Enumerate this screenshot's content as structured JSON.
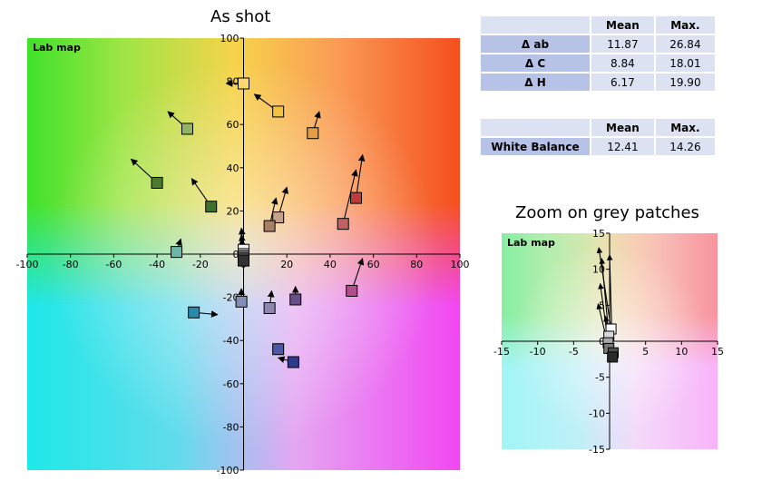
{
  "titles": {
    "main": "As shot",
    "zoom": "Zoom on grey patches"
  },
  "stats_table_1": {
    "headers": [
      "",
      "Mean",
      "Max."
    ],
    "rows": [
      {
        "label": "Δ ab",
        "mean": "11.87",
        "max": "26.84"
      },
      {
        "label": "Δ C",
        "mean": "8.84",
        "max": "18.01"
      },
      {
        "label": "Δ H",
        "mean": "6.17",
        "max": "19.90"
      }
    ]
  },
  "stats_table_2": {
    "headers": [
      "",
      "Mean",
      "Max."
    ],
    "rows": [
      {
        "label": "White Balance",
        "mean": "12.41",
        "max": "14.26"
      }
    ]
  },
  "colors": {
    "table_header_bg": "#dde2f3",
    "table_label_bg": "#b7c2e7",
    "arrow": "#000000"
  },
  "chart_data": [
    {
      "type": "scatter",
      "title": "As shot",
      "map_label": "Lab map",
      "xlim": [
        -100,
        100
      ],
      "ylim": [
        -100,
        100
      ],
      "xticks": [
        -100,
        -80,
        -60,
        -40,
        -20,
        0,
        20,
        40,
        60,
        80,
        100
      ],
      "yticks": [
        -100,
        -80,
        -60,
        -40,
        -20,
        0,
        20,
        40,
        60,
        80,
        100
      ],
      "background": "a*b* color gradient",
      "marker": "square with arrow",
      "patches": [
        {
          "a": 0,
          "b": 79,
          "ta": -8,
          "tb": 79,
          "fill": "#fcd96a"
        },
        {
          "a": 16,
          "b": 66,
          "ta": 5,
          "tb": 74,
          "fill": "#f4c241"
        },
        {
          "a": 32,
          "b": 56,
          "ta": 35,
          "tb": 66,
          "fill": "#e69e44"
        },
        {
          "a": -26,
          "b": 58,
          "ta": -35,
          "tb": 66,
          "fill": "#8fb563"
        },
        {
          "a": -40,
          "b": 33,
          "ta": -52,
          "tb": 44,
          "fill": "#4e7a2f"
        },
        {
          "a": -15,
          "b": 22,
          "ta": -24,
          "tb": 35,
          "fill": "#3f6f2d"
        },
        {
          "a": 52,
          "b": 26,
          "ta": 55,
          "tb": 46,
          "fill": "#bd3b3b"
        },
        {
          "a": 46,
          "b": 14,
          "ta": 52,
          "tb": 39,
          "fill": "#c26161"
        },
        {
          "a": 16,
          "b": 17,
          "ta": 20,
          "tb": 31,
          "fill": "#c7a18a"
        },
        {
          "a": 12,
          "b": 13,
          "ta": 15,
          "tb": 26,
          "fill": "#a67f67"
        },
        {
          "a": -31,
          "b": 1,
          "ta": -29,
          "tb": 7,
          "fill": "#69b8a8"
        },
        {
          "a": -23,
          "b": -27,
          "ta": -12,
          "tb": -28,
          "fill": "#2d89a9"
        },
        {
          "a": -1,
          "b": -22,
          "ta": -1,
          "tb": -16,
          "fill": "#7f8db7"
        },
        {
          "a": 12,
          "b": -25,
          "ta": 13,
          "tb": -17,
          "fill": "#8d86ad"
        },
        {
          "a": 24,
          "b": -21,
          "ta": 24,
          "tb": -15,
          "fill": "#6a4f86"
        },
        {
          "a": 50,
          "b": -17,
          "ta": 55,
          "tb": -2,
          "fill": "#b24e89"
        },
        {
          "a": 16,
          "b": -44,
          "ta": 16,
          "tb": -44,
          "fill": "#4d56a8"
        },
        {
          "a": 23,
          "b": -50,
          "ta": 16,
          "tb": -48,
          "fill": "#2f3a8e"
        },
        {
          "a": 0,
          "b": 2,
          "ta": -1,
          "tb": 12,
          "fill": "#f2f2f2"
        },
        {
          "a": 0,
          "b": 0,
          "ta": -1,
          "tb": 9,
          "fill": "#c6c6c6"
        },
        {
          "a": 0,
          "b": -1,
          "ta": -1,
          "tb": 7,
          "fill": "#8e8e8e"
        },
        {
          "a": 0,
          "b": -2,
          "ta": -1,
          "tb": 5,
          "fill": "#5d5d5d"
        },
        {
          "a": 0,
          "b": -3,
          "ta": -1,
          "tb": 3,
          "fill": "#333333"
        }
      ]
    },
    {
      "type": "scatter",
      "title": "Zoom on grey patches",
      "map_label": "Lab map",
      "xlim": [
        -15,
        15
      ],
      "ylim": [
        -15,
        15
      ],
      "xticks": [
        -15,
        -10,
        -5,
        0,
        5,
        10,
        15
      ],
      "yticks": [
        -15,
        -10,
        -5,
        0,
        5,
        10,
        15
      ],
      "background": "a*b* color gradient",
      "marker": "square with arrow",
      "patches": [
        {
          "a": 0.2,
          "b": 1.7,
          "ta": -1.5,
          "tb": 13,
          "fill": "#ffffff"
        },
        {
          "a": -0.1,
          "b": 0.7,
          "ta": -1.1,
          "tb": 11.5,
          "fill": "#d8d8d8"
        },
        {
          "a": -0.2,
          "b": -0.2,
          "ta": -1.3,
          "tb": 8,
          "fill": "#a8a8a8"
        },
        {
          "a": -0.1,
          "b": -1.0,
          "ta": -1.6,
          "tb": 5.2,
          "fill": "#7a7a7a"
        },
        {
          "a": 0.5,
          "b": -1.6,
          "ta": -0.6,
          "tb": 3.5,
          "fill": "#4d4d4d"
        },
        {
          "a": 0.4,
          "b": -2.2,
          "ta": 0.0,
          "tb": 12,
          "fill": "#2a2a2a"
        }
      ]
    }
  ]
}
